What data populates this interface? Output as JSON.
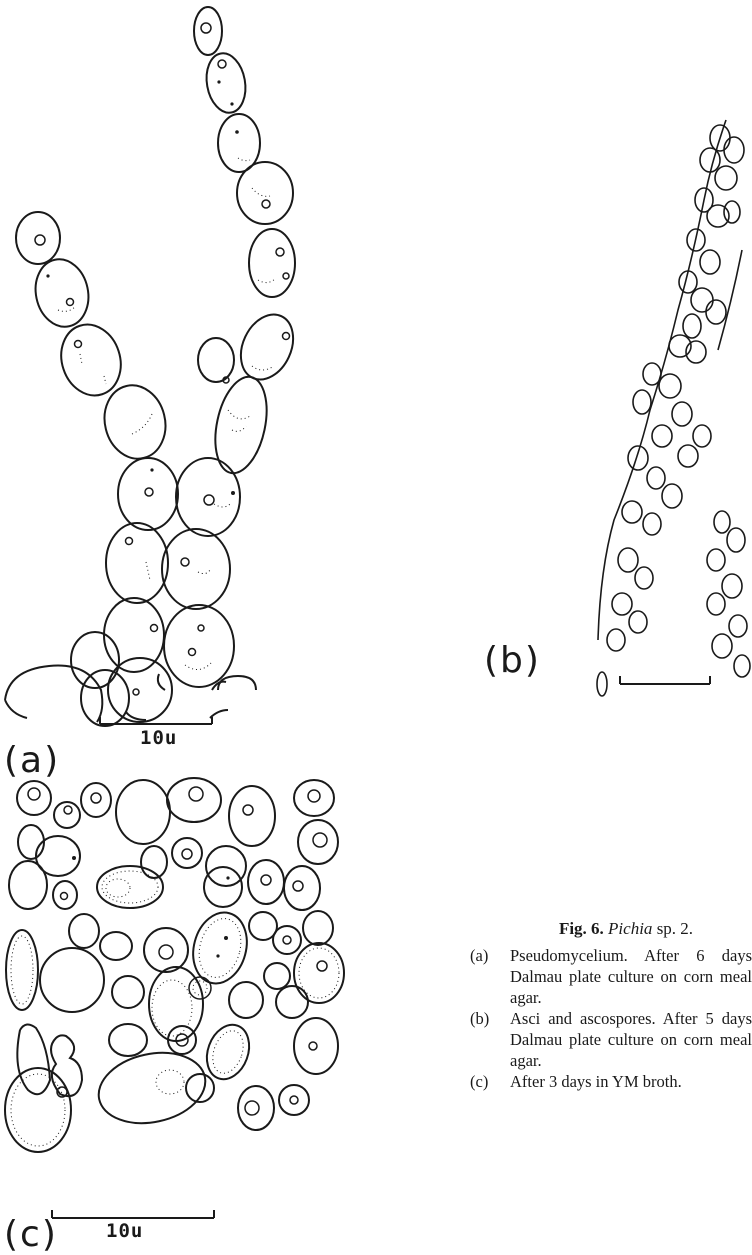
{
  "figure": {
    "label_prefix": "Fig. 6.",
    "genus": "Pichia",
    "species": " sp. 2."
  },
  "panels": {
    "a": {
      "label": "(a)",
      "scale_label": "10u"
    },
    "b": {
      "label": "(b)"
    },
    "c": {
      "label": "(c)",
      "scale_label": "10u"
    }
  },
  "caption_items": [
    {
      "tag": "(a)",
      "text": "Pseudomycelium. After 6 days Dalmau plate culture on corn meal agar."
    },
    {
      "tag": "(b)",
      "text": "Asci and ascospores. After 5 days Dalmau plate culture on corn meal agar."
    },
    {
      "tag": "(c)",
      "text": "After 3 days in YM broth."
    }
  ]
}
